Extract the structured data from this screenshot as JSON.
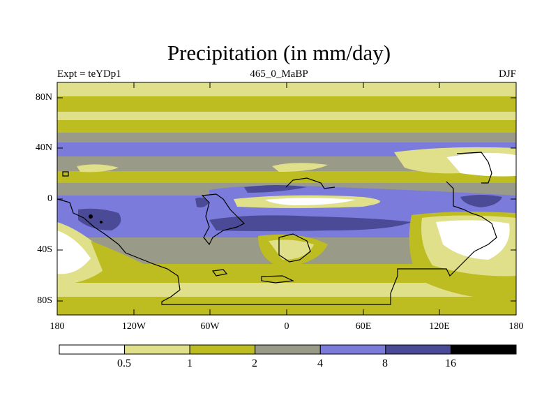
{
  "title": "Precipitation (in mm/day)",
  "subtitle_left": "Expt = teYDp1",
  "subtitle_center": "465_0_MaBP",
  "subtitle_right": "DJF",
  "y_axis": {
    "ticks": [
      "80N",
      "40N",
      "0",
      "40S",
      "80S"
    ]
  },
  "x_axis": {
    "ticks": [
      "180",
      "120W",
      "60W",
      "0",
      "60E",
      "120E",
      "180"
    ]
  },
  "colorbar": {
    "levels": [
      "0.5",
      "1",
      "2",
      "4",
      "8",
      "16"
    ],
    "colors": [
      "#ffffff",
      "#e0e08a",
      "#bdbd22",
      "#9a9a88",
      "#7b7bdc",
      "#4a4a96",
      "#000000"
    ]
  }
}
